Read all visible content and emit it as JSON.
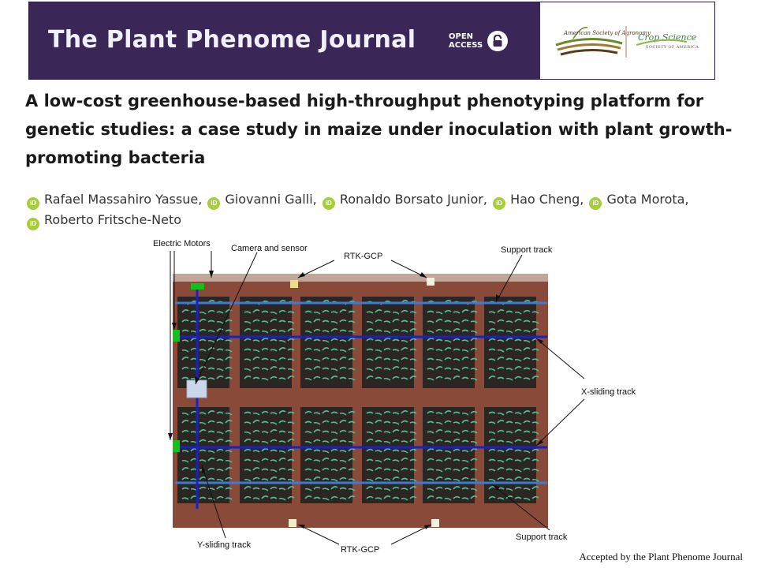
{
  "banner": {
    "journal_title": "The Plant Phenome Journal",
    "open_access_line1": "OPEN",
    "open_access_line2": "ACCESS",
    "society1_name": "American Society of Agronomy",
    "society2_name": "Crop Science",
    "society2_sub": "SOCIETY OF AMERICA"
  },
  "article": {
    "title": "A low-cost greenhouse-based high-throughput phenotyping platform for genetic studies: a case study in maize under inoculation with plant growth-promoting bacteria",
    "authors": [
      {
        "name": "Rafael Massahiro Yassue",
        "sep": ","
      },
      {
        "name": "Giovanni Galli",
        "sep": ","
      },
      {
        "name": "Ronaldo Borsato Junior",
        "sep": ","
      },
      {
        "name": "Hao Cheng",
        "sep": ","
      },
      {
        "name": "Gota Morota",
        "sep": ","
      },
      {
        "name": "Roberto Fritsche-Neto",
        "sep": ""
      }
    ]
  },
  "figure": {
    "labels": {
      "electric_motors": "Electric Motors",
      "camera_sensor": "Camera and sensor",
      "rtk_gcp_top": "RTK-GCP",
      "support_track_top": "Support track",
      "x_sliding_track": "X-sliding track",
      "y_sliding_track": "Y-sliding track",
      "rtk_gcp_bottom": "RTK-GCP",
      "support_track_bottom": "Support track"
    },
    "colors": {
      "floor": "#8a4a3a",
      "bed": "#2b2622",
      "plant": "#4fbf9a",
      "x_track": "#1a20c8",
      "support_track": "#3c7ad6",
      "motor": "#12c21a",
      "camera": "#c9d8ec"
    }
  },
  "footer": {
    "accepted_note": "Accepted by the Plant Phenome Journal"
  }
}
